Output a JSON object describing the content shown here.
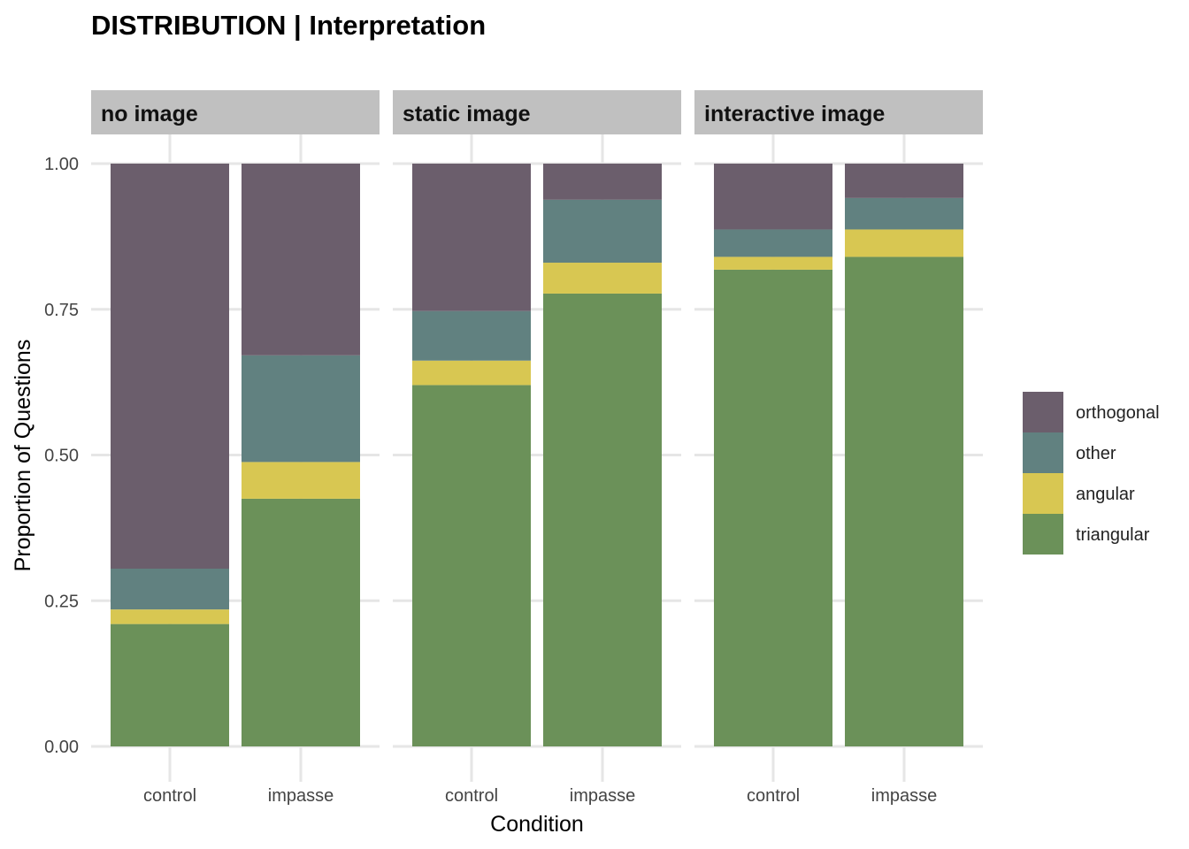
{
  "chart_data": {
    "type": "bar",
    "stacked": true,
    "title": "DISTRIBUTION | Interpretation",
    "xlabel": "Condition",
    "ylabel": "Proportion of Questions",
    "ylim": [
      0,
      1
    ],
    "y_ticks": [
      "0.00",
      "0.25",
      "0.50",
      "0.75",
      "1.00"
    ],
    "y_tick_values": [
      0,
      0.25,
      0.5,
      0.75,
      1
    ],
    "grid": true,
    "legend_position": "right",
    "categories": [
      "control",
      "impasse"
    ],
    "series": [
      {
        "name": "orthogonal",
        "color": "#6b5e6c"
      },
      {
        "name": "other",
        "color": "#618180"
      },
      {
        "name": "angular",
        "color": "#d8c752"
      },
      {
        "name": "triangular",
        "color": "#6b9159"
      }
    ],
    "panels": [
      {
        "label": "no image",
        "bars": [
          {
            "category": "control",
            "triangular": 0.21,
            "angular": 0.025,
            "other": 0.07,
            "orthogonal": 0.695
          },
          {
            "category": "impasse",
            "triangular": 0.425,
            "angular": 0.063,
            "other": 0.183,
            "orthogonal": 0.329
          }
        ]
      },
      {
        "label": "static image",
        "bars": [
          {
            "category": "control",
            "triangular": 0.62,
            "angular": 0.042,
            "other": 0.085,
            "orthogonal": 0.253
          },
          {
            "category": "impasse",
            "triangular": 0.777,
            "angular": 0.053,
            "other": 0.108,
            "orthogonal": 0.062
          }
        ]
      },
      {
        "label": "interactive image",
        "bars": [
          {
            "category": "control",
            "triangular": 0.818,
            "angular": 0.022,
            "other": 0.047,
            "orthogonal": 0.113
          },
          {
            "category": "impasse",
            "triangular": 0.84,
            "angular": 0.047,
            "other": 0.054,
            "orthogonal": 0.059
          }
        ]
      }
    ]
  }
}
